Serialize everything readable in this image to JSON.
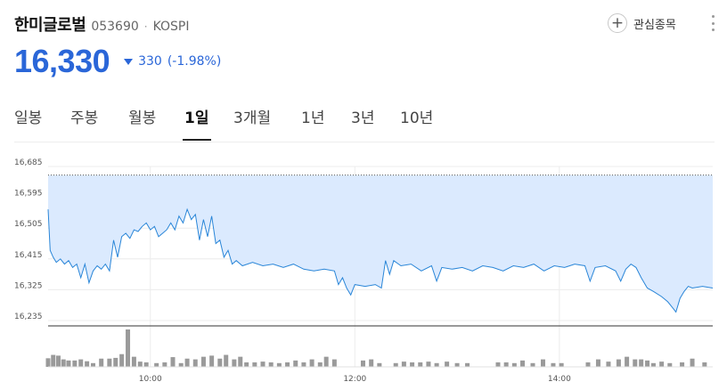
{
  "stock": {
    "name": "한미글로벌",
    "code": "053690",
    "separator": "·",
    "market": "KOSPI"
  },
  "actions": {
    "watch_label": "관심종목",
    "watch_icon": "plus-circle-icon",
    "more_icon": "vertical-ellipsis-icon"
  },
  "quote": {
    "price": "16,330",
    "direction_icon": "down-triangle-icon",
    "change": "330",
    "change_pct": "(-1.98%)",
    "down_color": "#2a66d8"
  },
  "tabs": [
    {
      "label": "일봉",
      "active": false
    },
    {
      "label": "주봉",
      "active": false
    },
    {
      "label": "월봉",
      "active": false
    },
    {
      "label": "1일",
      "active": true
    },
    {
      "label": "3개월",
      "active": false
    },
    {
      "label": "1년",
      "active": false
    },
    {
      "label": "3년",
      "active": false
    },
    {
      "label": "10년",
      "active": false
    }
  ],
  "chart_data": {
    "type": "area",
    "yticks": [
      "16,685",
      "16,595",
      "16,505",
      "16,415",
      "16,325",
      "16,235"
    ],
    "ylim": [
      16235,
      16685
    ],
    "xticks": [
      "10:00",
      "12:00",
      "14:00"
    ],
    "xlim": [
      9.0,
      15.5
    ],
    "reference_price": 16660,
    "line_color": "#2a86d8",
    "fill_color": "#dbeafe",
    "series": [
      {
        "values": [
          [
            9.0,
            16560
          ],
          [
            9.02,
            16440
          ],
          [
            9.05,
            16420
          ],
          [
            9.08,
            16405
          ],
          [
            9.12,
            16415
          ],
          [
            9.16,
            16400
          ],
          [
            9.2,
            16410
          ],
          [
            9.24,
            16390
          ],
          [
            9.28,
            16400
          ],
          [
            9.32,
            16360
          ],
          [
            9.36,
            16400
          ],
          [
            9.4,
            16345
          ],
          [
            9.44,
            16380
          ],
          [
            9.48,
            16395
          ],
          [
            9.52,
            16385
          ],
          [
            9.56,
            16400
          ],
          [
            9.6,
            16380
          ],
          [
            9.64,
            16470
          ],
          [
            9.68,
            16420
          ],
          [
            9.72,
            16480
          ],
          [
            9.76,
            16490
          ],
          [
            9.8,
            16475
          ],
          [
            9.84,
            16500
          ],
          [
            9.88,
            16495
          ],
          [
            9.92,
            16510
          ],
          [
            9.96,
            16520
          ],
          [
            10.0,
            16500
          ],
          [
            10.04,
            16510
          ],
          [
            10.08,
            16480
          ],
          [
            10.12,
            16490
          ],
          [
            10.16,
            16500
          ],
          [
            10.2,
            16520
          ],
          [
            10.24,
            16500
          ],
          [
            10.28,
            16540
          ],
          [
            10.32,
            16520
          ],
          [
            10.36,
            16560
          ],
          [
            10.4,
            16530
          ],
          [
            10.44,
            16545
          ],
          [
            10.48,
            16470
          ],
          [
            10.52,
            16530
          ],
          [
            10.56,
            16480
          ],
          [
            10.6,
            16540
          ],
          [
            10.64,
            16460
          ],
          [
            10.68,
            16470
          ],
          [
            10.72,
            16420
          ],
          [
            10.76,
            16440
          ],
          [
            10.8,
            16400
          ],
          [
            10.84,
            16410
          ],
          [
            10.9,
            16395
          ],
          [
            11.0,
            16405
          ],
          [
            11.1,
            16395
          ],
          [
            11.2,
            16400
          ],
          [
            11.3,
            16390
          ],
          [
            11.4,
            16400
          ],
          [
            11.5,
            16385
          ],
          [
            11.6,
            16380
          ],
          [
            11.7,
            16385
          ],
          [
            11.8,
            16380
          ],
          [
            11.84,
            16340
          ],
          [
            11.88,
            16360
          ],
          [
            11.92,
            16330
          ],
          [
            11.96,
            16310
          ],
          [
            12.0,
            16340
          ],
          [
            12.1,
            16335
          ],
          [
            12.2,
            16340
          ],
          [
            12.26,
            16330
          ],
          [
            12.3,
            16410
          ],
          [
            12.34,
            16370
          ],
          [
            12.38,
            16410
          ],
          [
            12.45,
            16395
          ],
          [
            12.55,
            16400
          ],
          [
            12.65,
            16380
          ],
          [
            12.75,
            16395
          ],
          [
            12.8,
            16350
          ],
          [
            12.85,
            16390
          ],
          [
            12.95,
            16385
          ],
          [
            13.05,
            16390
          ],
          [
            13.15,
            16380
          ],
          [
            13.25,
            16395
          ],
          [
            13.35,
            16390
          ],
          [
            13.45,
            16380
          ],
          [
            13.55,
            16395
          ],
          [
            13.65,
            16390
          ],
          [
            13.75,
            16400
          ],
          [
            13.85,
            16380
          ],
          [
            13.95,
            16395
          ],
          [
            14.05,
            16390
          ],
          [
            14.15,
            16400
          ],
          [
            14.25,
            16395
          ],
          [
            14.3,
            16350
          ],
          [
            14.35,
            16390
          ],
          [
            14.45,
            16395
          ],
          [
            14.55,
            16380
          ],
          [
            14.6,
            16350
          ],
          [
            14.65,
            16385
          ],
          [
            14.7,
            16400
          ],
          [
            14.75,
            16390
          ],
          [
            14.8,
            16360
          ],
          [
            14.86,
            16330
          ],
          [
            14.92,
            16320
          ],
          [
            15.0,
            16305
          ],
          [
            15.06,
            16290
          ],
          [
            15.1,
            16275
          ],
          [
            15.14,
            16260
          ],
          [
            15.18,
            16300
          ],
          [
            15.22,
            16320
          ],
          [
            15.26,
            16335
          ],
          [
            15.3,
            16330
          ],
          [
            15.4,
            16335
          ],
          [
            15.5,
            16330
          ]
        ]
      }
    ],
    "volume": {
      "values": [
        [
          9.0,
          0.23
        ],
        [
          9.05,
          0.32
        ],
        [
          9.1,
          0.3
        ],
        [
          9.15,
          0.2
        ],
        [
          9.2,
          0.17
        ],
        [
          9.26,
          0.17
        ],
        [
          9.32,
          0.2
        ],
        [
          9.38,
          0.15
        ],
        [
          9.44,
          0.1
        ],
        [
          9.52,
          0.22
        ],
        [
          9.6,
          0.22
        ],
        [
          9.66,
          0.24
        ],
        [
          9.72,
          0.34
        ],
        [
          9.78,
          1.0
        ],
        [
          9.84,
          0.27
        ],
        [
          9.9,
          0.14
        ],
        [
          9.96,
          0.12
        ],
        [
          10.06,
          0.1
        ],
        [
          10.14,
          0.12
        ],
        [
          10.22,
          0.26
        ],
        [
          10.3,
          0.1
        ],
        [
          10.36,
          0.22
        ],
        [
          10.44,
          0.2
        ],
        [
          10.52,
          0.27
        ],
        [
          10.6,
          0.3
        ],
        [
          10.68,
          0.22
        ],
        [
          10.74,
          0.32
        ],
        [
          10.82,
          0.2
        ],
        [
          10.88,
          0.27
        ],
        [
          10.94,
          0.12
        ],
        [
          11.02,
          0.12
        ],
        [
          11.1,
          0.14
        ],
        [
          11.18,
          0.12
        ],
        [
          11.26,
          0.1
        ],
        [
          11.34,
          0.12
        ],
        [
          11.42,
          0.17
        ],
        [
          11.5,
          0.12
        ],
        [
          11.58,
          0.2
        ],
        [
          11.66,
          0.12
        ],
        [
          11.72,
          0.27
        ],
        [
          11.8,
          0.2
        ],
        [
          12.08,
          0.17
        ],
        [
          12.16,
          0.2
        ],
        [
          12.24,
          0.1
        ],
        [
          12.4,
          0.1
        ],
        [
          12.48,
          0.14
        ],
        [
          12.56,
          0.12
        ],
        [
          12.64,
          0.12
        ],
        [
          12.72,
          0.14
        ],
        [
          12.8,
          0.1
        ],
        [
          12.9,
          0.14
        ],
        [
          13.0,
          0.1
        ],
        [
          13.1,
          0.1
        ],
        [
          13.4,
          0.12
        ],
        [
          13.48,
          0.12
        ],
        [
          13.56,
          0.1
        ],
        [
          13.64,
          0.17
        ],
        [
          13.74,
          0.1
        ],
        [
          13.84,
          0.2
        ],
        [
          13.94,
          0.1
        ],
        [
          14.02,
          0.1
        ],
        [
          14.28,
          0.12
        ],
        [
          14.38,
          0.2
        ],
        [
          14.48,
          0.14
        ],
        [
          14.58,
          0.2
        ],
        [
          14.66,
          0.27
        ],
        [
          14.74,
          0.2
        ],
        [
          14.8,
          0.2
        ],
        [
          14.86,
          0.17
        ],
        [
          14.92,
          0.1
        ],
        [
          15.0,
          0.14
        ],
        [
          15.08,
          0.1
        ],
        [
          15.2,
          0.12
        ],
        [
          15.3,
          0.22
        ],
        [
          15.42,
          0.12
        ]
      ]
    }
  }
}
